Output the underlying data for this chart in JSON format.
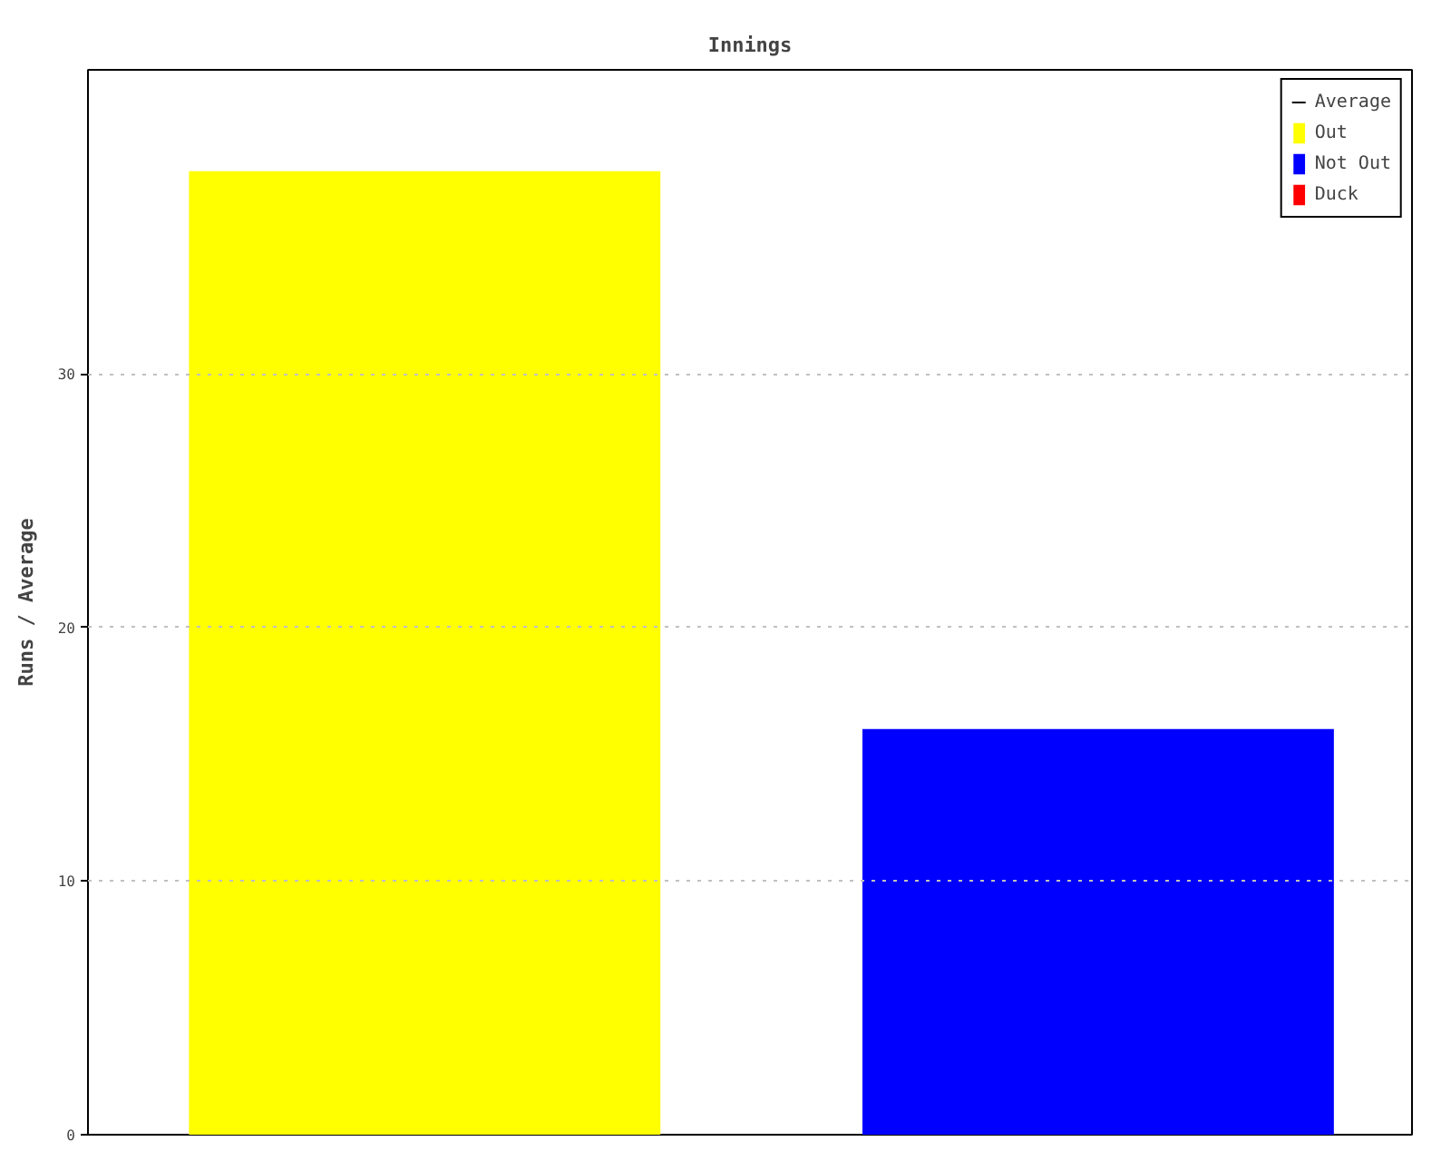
{
  "chart_data": {
    "type": "bar",
    "title": "Innings",
    "ylabel": "Runs / Average",
    "categories": [
      null,
      null
    ],
    "stacked": true,
    "series": [
      {
        "name": "Average",
        "type": "line",
        "color": "#000000",
        "values": [
          null,
          null
        ]
      },
      {
        "name": "Out",
        "color": "#ffff00",
        "values": [
          38,
          null
        ]
      },
      {
        "name": "Not Out",
        "color": "#0000ff",
        "values": [
          null,
          16
        ]
      },
      {
        "name": "Duck",
        "color": "#ff0000",
        "values": [
          null,
          null
        ]
      }
    ],
    "ylim": [
      0,
      42
    ],
    "yticks": [
      0,
      10,
      20,
      30
    ],
    "grid": "y",
    "legend": "top right"
  }
}
